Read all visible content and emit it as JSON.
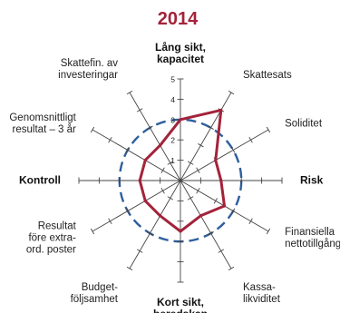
{
  "chart_data": {
    "type": "radar",
    "title": "2014",
    "scale_min": 0,
    "scale_max": 5,
    "ticks": [
      "1",
      "2",
      "3",
      "4",
      "5"
    ],
    "axes": [
      [
        "Lång sikt,",
        "kapacitet"
      ],
      [
        "Skattesats"
      ],
      [
        "Soliditet"
      ],
      [
        "Risk"
      ],
      [
        "Finansiella",
        "nettotillgångar"
      ],
      [
        "Kassa-",
        "likviditet"
      ],
      [
        "Kort sikt,",
        "beredskap"
      ],
      [
        "Budget-",
        "följsamhet"
      ],
      [
        "Resultat",
        "före extra-",
        "ord. poster"
      ],
      [
        "Kontroll"
      ],
      [
        "Genomsnittligt",
        "resultat – 3 år"
      ],
      [
        "Skattefin. av",
        "investeringar"
      ]
    ],
    "bold_axes": [
      0,
      3,
      6,
      9
    ],
    "values": [
      3.0,
      4.0,
      2.0,
      2.0,
      2.5,
      2.0,
      2.5,
      2.0,
      2.0,
      2.0,
      2.0,
      2.0
    ],
    "reference_value": 3,
    "colors": {
      "series": "#a3233a",
      "reference": "#2e5f9e",
      "axis": "#444444",
      "title": "#a3233a"
    },
    "grid": false,
    "legend": "none"
  }
}
